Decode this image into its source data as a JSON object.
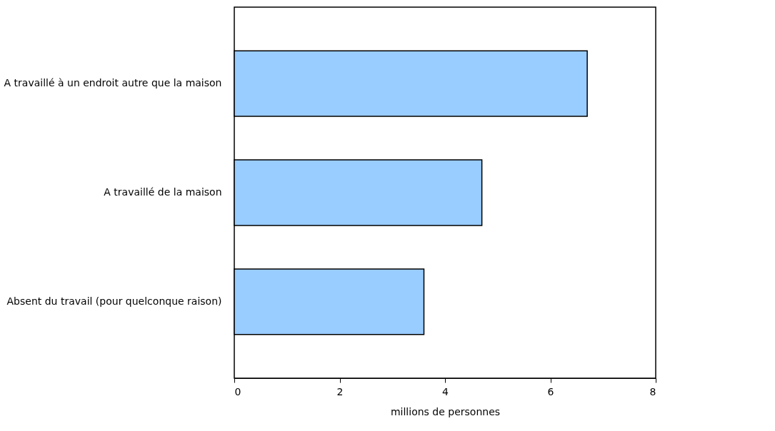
{
  "chart_data": {
    "type": "bar",
    "orientation": "horizontal",
    "xlabel": "millions de personnes",
    "categories": [
      "A travaillé à un endroit autre que la maison",
      "A travaillé de la maison",
      "Absent du travail (pour quelconque raison)"
    ],
    "values": [
      6.7,
      4.7,
      3.6
    ],
    "color": "#99ccff",
    "xlim": [
      0,
      8
    ],
    "xticks": [
      0,
      2,
      4,
      6,
      8
    ],
    "grid": false
  }
}
